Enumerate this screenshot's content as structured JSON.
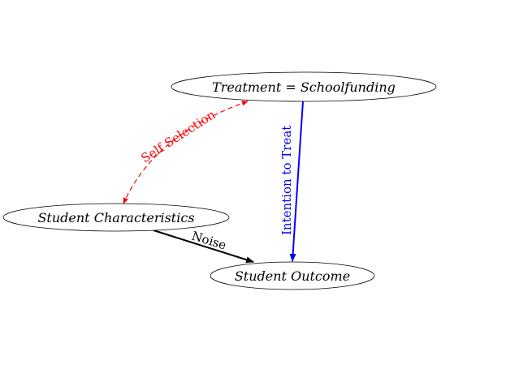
{
  "diagram": {
    "nodes": {
      "treatment": {
        "label": "Treatment = Schoolfunding"
      },
      "characteristics": {
        "label": "Student Characteristics"
      },
      "outcome": {
        "label": "Student Outcome"
      }
    },
    "edges": {
      "self_selection": {
        "label": "Self Selection",
        "color": "#ff0000",
        "style": "dashed",
        "direction": "both",
        "from": "treatment",
        "to": "characteristics"
      },
      "intention_to_treat": {
        "label": "Intention to Treat",
        "color": "#0000ff",
        "style": "solid",
        "direction": "forward",
        "from": "treatment",
        "to": "outcome"
      },
      "noise": {
        "label": "Noise",
        "color": "#000000",
        "style": "solid",
        "direction": "forward",
        "from": "characteristics",
        "to": "outcome"
      }
    }
  }
}
